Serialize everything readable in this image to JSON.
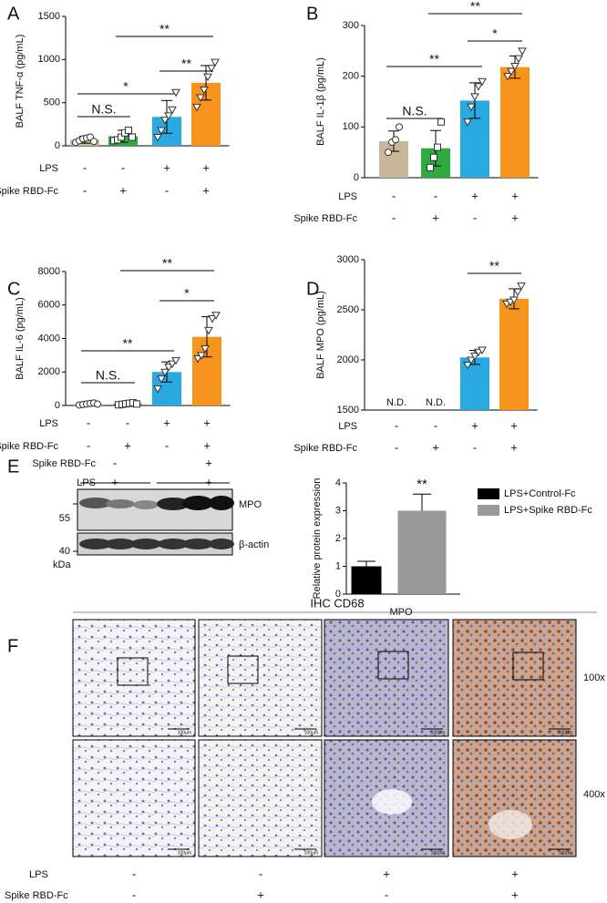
{
  "chart_data": [
    {
      "type": "bar",
      "panel": "A",
      "ylabel": "BALF TNF-α (pg/mL)",
      "values": [
        70,
        110,
        335,
        730
      ],
      "errors": [
        40,
        70,
        190,
        200
      ],
      "colors": [
        "#c8b89a",
        "#2eaa3f",
        "#29a9e0",
        "#f7941d"
      ],
      "markers": [
        "circle",
        "square",
        "triangle",
        "triangle"
      ],
      "points": [
        [
          40,
          60,
          80,
          90,
          100,
          50
        ],
        [
          60,
          70,
          100,
          150,
          180,
          100
        ],
        [
          100,
          180,
          300,
          350,
          420,
          620
        ],
        [
          450,
          560,
          650,
          800,
          900,
          970
        ]
      ],
      "ylim": [
        0,
        1500
      ],
      "yticks": [
        0,
        500,
        1000,
        1500
      ],
      "annotations": [
        "N.S.",
        "*",
        "**",
        "**"
      ],
      "conditions": [
        {
          "name": "LPS",
          "values": [
            "-",
            "-",
            "+",
            "+"
          ]
        },
        {
          "name": "Spike RBD-Fc",
          "values": [
            "-",
            "+",
            "-",
            "+"
          ]
        }
      ]
    },
    {
      "type": "bar",
      "panel": "B",
      "ylabel": "BALF IL-1β (pg/mL)",
      "values": [
        72,
        58,
        152,
        218
      ],
      "errors": [
        20,
        35,
        35,
        22
      ],
      "colors": [
        "#c8b89a",
        "#2eaa3f",
        "#29a9e0",
        "#f7941d"
      ],
      "markers": [
        "circle",
        "square",
        "triangle",
        "triangle"
      ],
      "points": [
        [
          50,
          70,
          75,
          100
        ],
        [
          20,
          40,
          60,
          110
        ],
        [
          110,
          140,
          160,
          180,
          190
        ],
        [
          200,
          210,
          220,
          235,
          250
        ]
      ],
      "ylim": [
        0,
        300
      ],
      "yticks": [
        0,
        100,
        200,
        300
      ],
      "annotations": [
        "N.S.",
        "**",
        "*",
        "**"
      ],
      "conditions": [
        {
          "name": "LPS",
          "values": [
            "-",
            "-",
            "+",
            "+"
          ]
        },
        {
          "name": "Spike RBD-Fc",
          "values": [
            "-",
            "+",
            "-",
            "+"
          ]
        }
      ]
    },
    {
      "type": "bar",
      "panel": "C",
      "ylabel": "BALF IL-6 (pg/mL)",
      "values": [
        100,
        100,
        2000,
        4100
      ],
      "errors": [
        80,
        80,
        600,
        1200
      ],
      "colors": [
        "#c8b89a",
        "#2eaa3f",
        "#29a9e0",
        "#f7941d"
      ],
      "markers": [
        "circle",
        "square",
        "triangle",
        "triangle"
      ],
      "points": [
        [
          30,
          60,
          90,
          120,
          150,
          80
        ],
        [
          40,
          70,
          100,
          130,
          160,
          90
        ],
        [
          1000,
          1600,
          2000,
          2300,
          2500,
          2700
        ],
        [
          2800,
          3000,
          3400,
          4500,
          5200,
          5400
        ]
      ],
      "ylim": [
        0,
        8000
      ],
      "yticks": [
        0,
        2000,
        4000,
        6000,
        8000
      ],
      "annotations": [
        "N.S.",
        "**",
        "*",
        "**"
      ],
      "conditions": [
        {
          "name": "LPS",
          "values": [
            "-",
            "-",
            "+",
            "+"
          ]
        },
        {
          "name": "Spike RBD-Fc",
          "values": [
            "-",
            "+",
            "-",
            "+"
          ]
        }
      ]
    },
    {
      "type": "bar",
      "panel": "D",
      "ylabel": "BALF MPO (pg/mL)",
      "values": [
        null,
        null,
        2025,
        2610
      ],
      "errors": [
        null,
        null,
        70,
        100
      ],
      "value_labels": [
        "N.D.",
        "N.D.",
        null,
        null
      ],
      "colors": [
        "#c8b89a",
        "#2eaa3f",
        "#29a9e0",
        "#f7941d"
      ],
      "markers": [
        "circle",
        "square",
        "triangle",
        "triangle"
      ],
      "points": [
        [],
        [],
        [
          1950,
          2000,
          2040,
          2080,
          2100
        ],
        [
          2560,
          2580,
          2600,
          2680,
          2740
        ]
      ],
      "ylim": [
        1500,
        3000
      ],
      "yticks": [
        1500,
        2000,
        2500,
        3000
      ],
      "annotations": [
        "**"
      ],
      "conditions": [
        {
          "name": "LPS",
          "values": [
            "-",
            "-",
            "+",
            "+"
          ]
        },
        {
          "name": "Spike RBD-Fc",
          "values": [
            "-",
            "+",
            "-",
            "+"
          ]
        }
      ]
    },
    {
      "type": "grouped_bar",
      "ylabel": "Relative protein expression",
      "categories": [
        "MPO"
      ],
      "series": [
        {
          "name": "LPS+Control-Fc",
          "color": "#000000",
          "values": [
            1.0
          ],
          "errors": [
            0.18
          ]
        },
        {
          "name": "LPS+Spike RBD-Fc",
          "color": "#999999",
          "values": [
            3.0
          ],
          "errors": [
            0.6
          ]
        }
      ],
      "ylim": [
        0,
        4
      ],
      "yticks": [
        0,
        1,
        2,
        3,
        4
      ],
      "annotations": [
        "**"
      ],
      "legend": "top-right"
    }
  ],
  "western_blot": {
    "panel": "E",
    "rows": [
      {
        "name": "Spike RBD-Fc",
        "values": [
          "-",
          "+"
        ]
      },
      {
        "name": "LPS",
        "values": [
          "+",
          "+"
        ]
      }
    ],
    "bands": [
      "MPO",
      "β-actin"
    ],
    "markers": [
      "55",
      "40"
    ],
    "unit": "kDa"
  },
  "ihc": {
    "panel": "F",
    "title": "IHC CD68",
    "magnifications": [
      "100x",
      "400x"
    ],
    "scale_bar": "100μm",
    "conditions": [
      {
        "name": "LPS",
        "values": [
          "-",
          "-",
          "+",
          "+"
        ]
      },
      {
        "name": "Spike RBD-Fc",
        "values": [
          "-",
          "+",
          "-",
          "+"
        ]
      }
    ]
  }
}
